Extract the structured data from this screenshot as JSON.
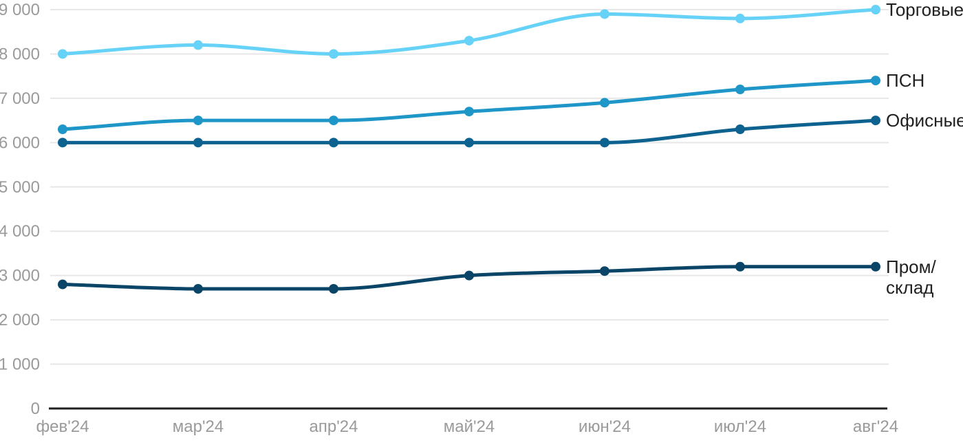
{
  "chart_data": {
    "type": "line",
    "title": "",
    "xlabel": "",
    "ylabel": "",
    "categories": [
      "фев'24",
      "мар'24",
      "апр'24",
      "май'24",
      "июн'24",
      "июл'24",
      "авг'24"
    ],
    "y_ticks": [
      0,
      1000,
      2000,
      3000,
      4000,
      5000,
      6000,
      7000,
      8000,
      9000
    ],
    "y_tick_labels": [
      "0",
      "1 000",
      "2 000",
      "3 000",
      "4 000",
      "5 000",
      "6 000",
      "7 000",
      "8 000",
      "9 000"
    ],
    "ylim": [
      0,
      9000
    ],
    "grid": "horizontal",
    "legend_position": "right-end-of-lines",
    "series": [
      {
        "name": "Торговые",
        "color": "#67D2F8",
        "values": [
          8000,
          8200,
          8000,
          8300,
          8900,
          8800,
          9000
        ],
        "label_lines": [
          "Торговые"
        ]
      },
      {
        "name": "ПСН",
        "color": "#1F96C8",
        "values": [
          6300,
          6500,
          6500,
          6700,
          6900,
          7200,
          7400
        ],
        "label_lines": [
          "ПСН"
        ]
      },
      {
        "name": "Офисные",
        "color": "#0D6290",
        "values": [
          6000,
          6000,
          6000,
          6000,
          6000,
          6300,
          6500
        ],
        "label_lines": [
          "Офисные"
        ]
      },
      {
        "name": "Пром/склад",
        "color": "#0A4568",
        "values": [
          2800,
          2700,
          2700,
          3000,
          3100,
          3200,
          3200
        ],
        "label_lines": [
          "Пром/",
          "склад"
        ]
      }
    ],
    "colors": {
      "background": "#FFFFFF",
      "grid": "#E7E7E7",
      "axis": "#1F1F1F",
      "tick_label": "#9A9A9A",
      "legend_text": "#212121"
    }
  }
}
